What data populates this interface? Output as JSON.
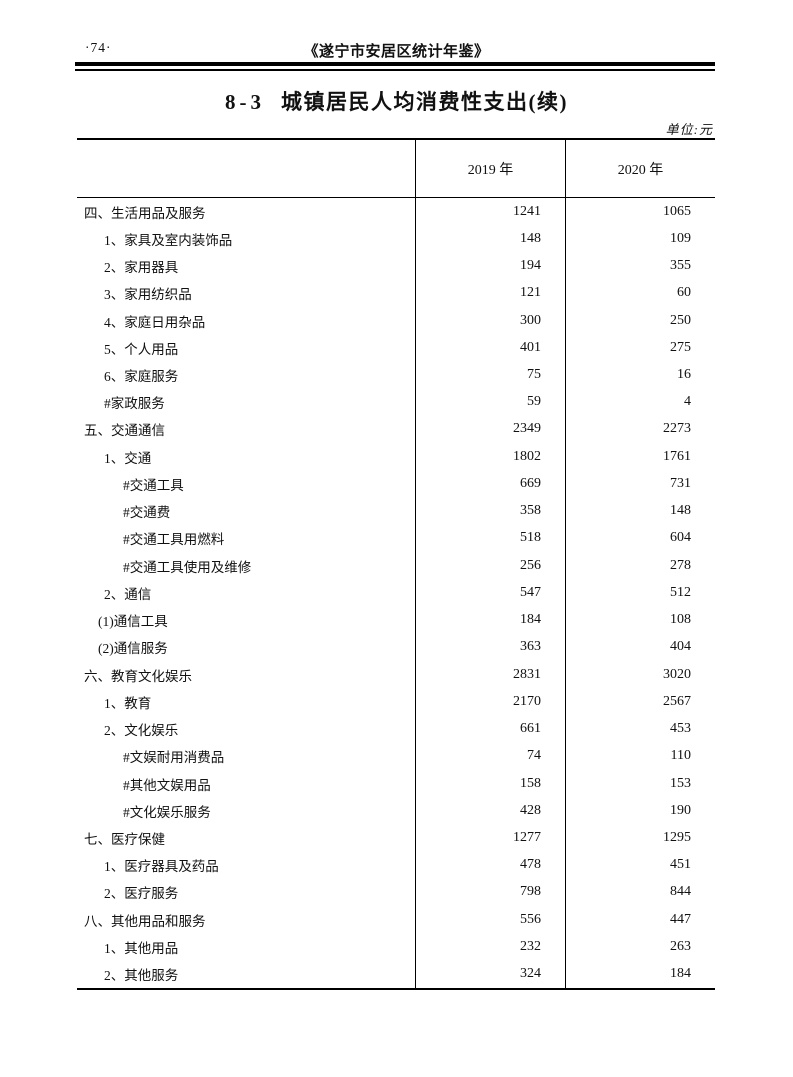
{
  "page_header": {
    "page_number": "·74·",
    "book_title": "《遂宁市安居区统计年鉴》"
  },
  "title": {
    "number": "8-3",
    "text": "城镇居民人均消费性支出(续)"
  },
  "unit_label": "单位:元",
  "table": {
    "col_2019": "2019 年",
    "col_2020": "2020 年",
    "rows": [
      {
        "label": "四、生活用品及服务",
        "indent": "l0",
        "v2019": "1241",
        "v2020": "1065"
      },
      {
        "label": "1、家具及室内装饰品",
        "indent": "l1",
        "v2019": "148",
        "v2020": "109"
      },
      {
        "label": "2、家用器具",
        "indent": "l1",
        "v2019": "194",
        "v2020": "355"
      },
      {
        "label": "3、家用纺织品",
        "indent": "l1",
        "v2019": "121",
        "v2020": "60"
      },
      {
        "label": "4、家庭日用杂品",
        "indent": "l1",
        "v2019": "300",
        "v2020": "250"
      },
      {
        "label": "5、个人用品",
        "indent": "l1",
        "v2019": "401",
        "v2020": "275"
      },
      {
        "label": "6、家庭服务",
        "indent": "l1",
        "v2019": "75",
        "v2020": "16"
      },
      {
        "label": "#家政服务",
        "indent": "l1",
        "v2019": "59",
        "v2020": "4"
      },
      {
        "label": "五、交通通信",
        "indent": "l0",
        "v2019": "2349",
        "v2020": "2273"
      },
      {
        "label": "1、交通",
        "indent": "l1",
        "v2019": "1802",
        "v2020": "1761"
      },
      {
        "label": "#交通工具",
        "indent": "l2",
        "v2019": "669",
        "v2020": "731"
      },
      {
        "label": "#交通费",
        "indent": "l2",
        "v2019": "358",
        "v2020": "148"
      },
      {
        "label": "#交通工具用燃料",
        "indent": "l2",
        "v2019": "518",
        "v2020": "604"
      },
      {
        "label": "#交通工具使用及维修",
        "indent": "l2",
        "v2019": "256",
        "v2020": "278"
      },
      {
        "label": "2、通信",
        "indent": "l1",
        "v2019": "547",
        "v2020": "512"
      },
      {
        "label": "(1)通信工具",
        "indent": "lp",
        "v2019": "184",
        "v2020": "108"
      },
      {
        "label": "(2)通信服务",
        "indent": "lp",
        "v2019": "363",
        "v2020": "404"
      },
      {
        "label": "六、教育文化娱乐",
        "indent": "l0",
        "v2019": "2831",
        "v2020": "3020"
      },
      {
        "label": "1、教育",
        "indent": "l1",
        "v2019": "2170",
        "v2020": "2567"
      },
      {
        "label": "2、文化娱乐",
        "indent": "l1",
        "v2019": "661",
        "v2020": "453"
      },
      {
        "label": "#文娱耐用消费品",
        "indent": "l2",
        "v2019": "74",
        "v2020": "110"
      },
      {
        "label": "#其他文娱用品",
        "indent": "l2",
        "v2019": "158",
        "v2020": "153"
      },
      {
        "label": "#文化娱乐服务",
        "indent": "l2",
        "v2019": "428",
        "v2020": "190"
      },
      {
        "label": "七、医疗保健",
        "indent": "l0",
        "v2019": "1277",
        "v2020": "1295"
      },
      {
        "label": "1、医疗器具及药品",
        "indent": "l1",
        "v2019": "478",
        "v2020": "451"
      },
      {
        "label": "2、医疗服务",
        "indent": "l1",
        "v2019": "798",
        "v2020": "844"
      },
      {
        "label": "八、其他用品和服务",
        "indent": "l0",
        "v2019": "556",
        "v2020": "447"
      },
      {
        "label": "1、其他用品",
        "indent": "l1",
        "v2019": "232",
        "v2020": "263"
      },
      {
        "label": "2、其他服务",
        "indent": "l1",
        "v2019": "324",
        "v2020": "184"
      }
    ]
  }
}
